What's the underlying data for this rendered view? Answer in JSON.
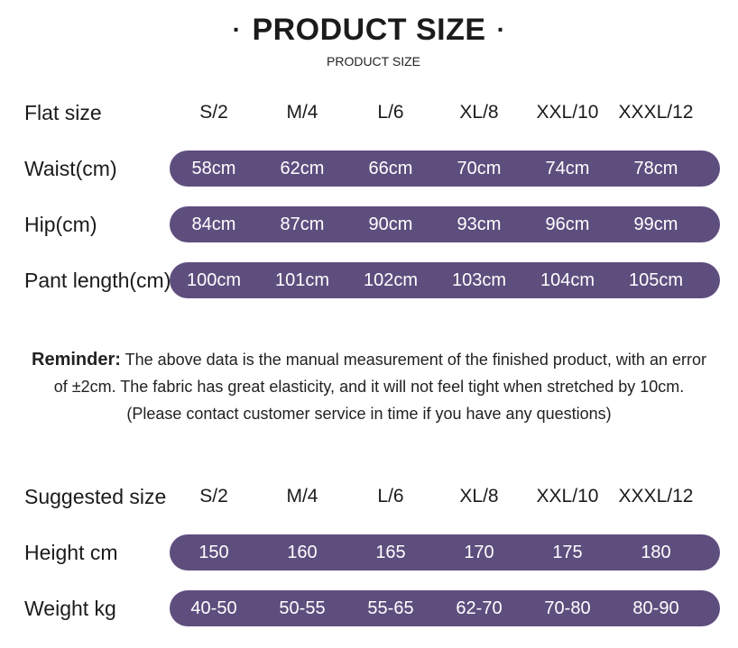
{
  "header": {
    "title": "PRODUCT SIZE",
    "dot_left": "·",
    "dot_right": "·",
    "subtitle": "PRODUCT SIZE"
  },
  "flat_table": {
    "header_label": "Flat size",
    "sizes": [
      "S/2",
      "M/4",
      "L/6",
      "XL/8",
      "XXL/10",
      "XXXL/12"
    ],
    "rows": [
      {
        "label": "Waist(cm)",
        "values": [
          "58cm",
          "62cm",
          "66cm",
          "70cm",
          "74cm",
          "78cm"
        ]
      },
      {
        "label": "Hip(cm)",
        "values": [
          "84cm",
          "87cm",
          "90cm",
          "93cm",
          "96cm",
          "99cm"
        ]
      },
      {
        "label": "Pant length(cm)",
        "values": [
          "100cm",
          "101cm",
          "102cm",
          "103cm",
          "104cm",
          "105cm"
        ]
      }
    ]
  },
  "reminder": {
    "label": "Reminder:",
    "line1": "The above data is the manual measurement of the finished product, with an error",
    "line2": "of ±2cm. The fabric has great elasticity, and it will not feel tight when stretched by 10cm.",
    "line3": "(Please contact customer service in time if you have any questions)"
  },
  "suggested_table": {
    "header_label": "Suggested size",
    "sizes": [
      "S/2",
      "M/4",
      "L/6",
      "XL/8",
      "XXL/10",
      "XXXL/12"
    ],
    "rows": [
      {
        "label": "Height cm",
        "values": [
          "150",
          "160",
          "165",
          "170",
          "175",
          "180"
        ]
      },
      {
        "label": "Weight kg",
        "values": [
          "40-50",
          "50-55",
          "55-65",
          "62-70",
          "70-80",
          "80-90"
        ]
      }
    ]
  },
  "colors": {
    "pill_background": "#5e4e7e",
    "pill_text": "#ffffff",
    "text": "#1b1b1b"
  }
}
